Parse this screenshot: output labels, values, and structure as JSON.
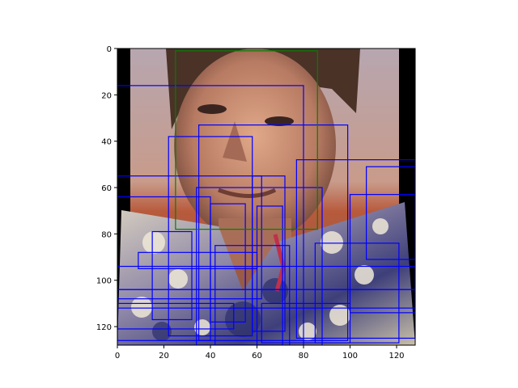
{
  "figure": {
    "image_description_tag": "photo-face-detection-overlay",
    "xlim": [
      0,
      128
    ],
    "ylim": [
      128,
      0
    ],
    "x_ticks": [
      0,
      20,
      40,
      60,
      80,
      100,
      120
    ],
    "y_ticks": [
      0,
      20,
      40,
      60,
      80,
      100,
      120
    ],
    "box_color_main": "#0000ff",
    "box_color_highlight": "#008000"
  },
  "boxes": {
    "highlight": [
      [
        25,
        1,
        86,
        78
      ]
    ],
    "detections": [
      [
        0,
        16,
        80,
        128
      ],
      [
        35,
        33,
        99,
        126
      ],
      [
        22,
        38,
        58,
        124
      ],
      [
        77,
        48,
        128,
        125
      ],
      [
        107,
        51,
        128,
        91
      ],
      [
        0,
        55,
        62,
        108
      ],
      [
        58,
        55,
        72,
        122
      ],
      [
        34,
        60,
        88,
        128
      ],
      [
        100,
        63,
        128,
        114
      ],
      [
        0,
        64,
        40,
        126
      ],
      [
        40,
        67,
        55,
        118
      ],
      [
        15,
        79,
        32,
        117
      ],
      [
        9,
        88,
        60,
        95
      ],
      [
        85,
        84,
        121,
        127
      ],
      [
        0,
        94,
        128,
        104
      ],
      [
        0,
        104,
        128,
        112
      ],
      [
        60,
        68,
        71,
        128
      ],
      [
        62,
        110,
        100,
        127
      ],
      [
        42,
        85,
        74,
        128
      ],
      [
        0,
        110,
        50,
        121
      ]
    ]
  }
}
